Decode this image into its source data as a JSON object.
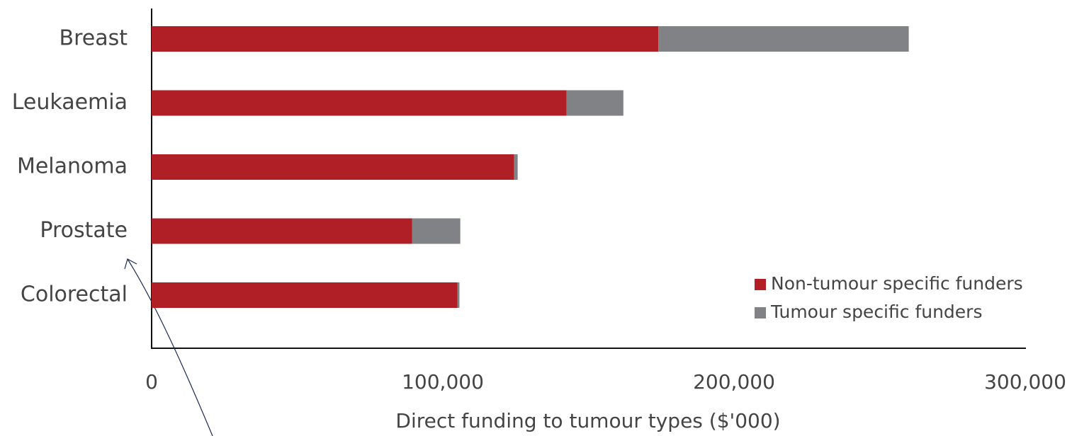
{
  "chart_data": {
    "type": "barh_stacked",
    "xlabel": "Direct funding to tumour types ($'000)",
    "categories": [
      "Breast",
      "Leukaemia",
      "Melanoma",
      "Prostate",
      "Colorectal"
    ],
    "series": [
      {
        "name": "Non-tumour specific funders",
        "color": "#b01f26",
        "values": [
          174000,
          142500,
          124500,
          89500,
          105000
        ]
      },
      {
        "name": "Tumour specific funders",
        "color": "#808285",
        "values": [
          86000,
          19500,
          1200,
          16500,
          700
        ]
      }
    ],
    "xlim": [
      0,
      300000
    ],
    "xticks": [
      0,
      {
        "value": 100000,
        "label": "100,000"
      },
      {
        "value": 200000,
        "label": "200,000"
      },
      {
        "value": 300000,
        "label": "300,000"
      }
    ],
    "legend": "lower right"
  }
}
